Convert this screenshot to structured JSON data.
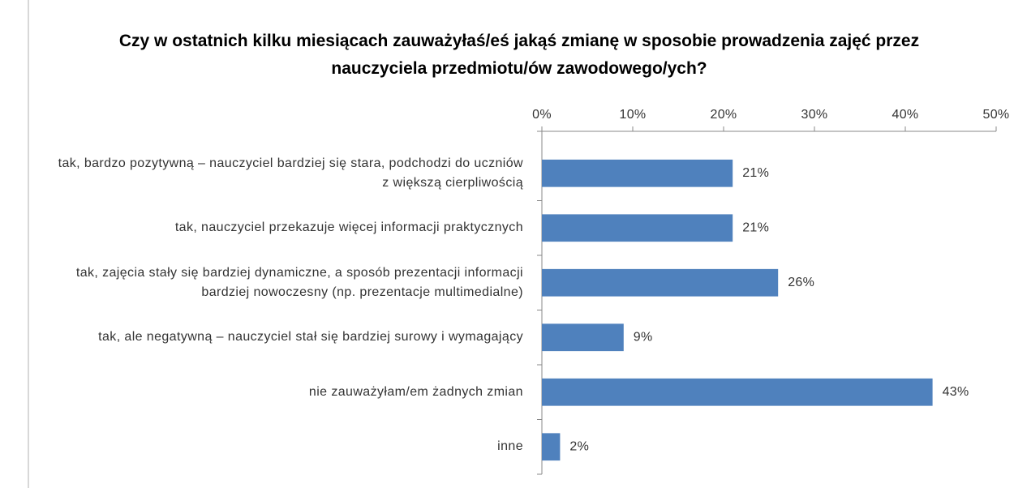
{
  "chart_data": {
    "type": "bar",
    "orientation": "horizontal",
    "title": "Czy w ostatnich kilku miesiącach zauważyłaś/eś jakąś zmianę w sposobie prowadzenia zajęć przez nauczyciela przedmiotu/ów zawodowego/ych?",
    "categories": [
      "tak, bardzo pozytywną – nauczyciel bardziej się stara, podchodzi do uczniów z większą cierpliwością",
      "tak, nauczyciel przekazuje więcej informacji praktycznych",
      "tak, zajęcia stały się bardziej dynamiczne, a sposób prezentacji informacji bardziej nowoczesny (np. prezentacje multimedialne)",
      "tak, ale negatywną – nauczyciel stał się bardziej surowy i wymagający",
      "nie zauważyłam/em żadnych zmian",
      "inne"
    ],
    "values": [
      21,
      21,
      26,
      9,
      43,
      2
    ],
    "value_labels": [
      "21%",
      "21%",
      "26%",
      "9%",
      "43%",
      "2%"
    ],
    "color": "#4f81bd",
    "xlim": [
      0,
      50
    ],
    "xticks": [
      {
        "value": 0,
        "label": "0%"
      },
      {
        "value": 10,
        "label": "10%"
      },
      {
        "value": 20,
        "label": "20%"
      },
      {
        "value": 30,
        "label": "30%"
      },
      {
        "value": 40,
        "label": "40%"
      },
      {
        "value": 50,
        "label": "50%"
      }
    ],
    "grid": false
  }
}
